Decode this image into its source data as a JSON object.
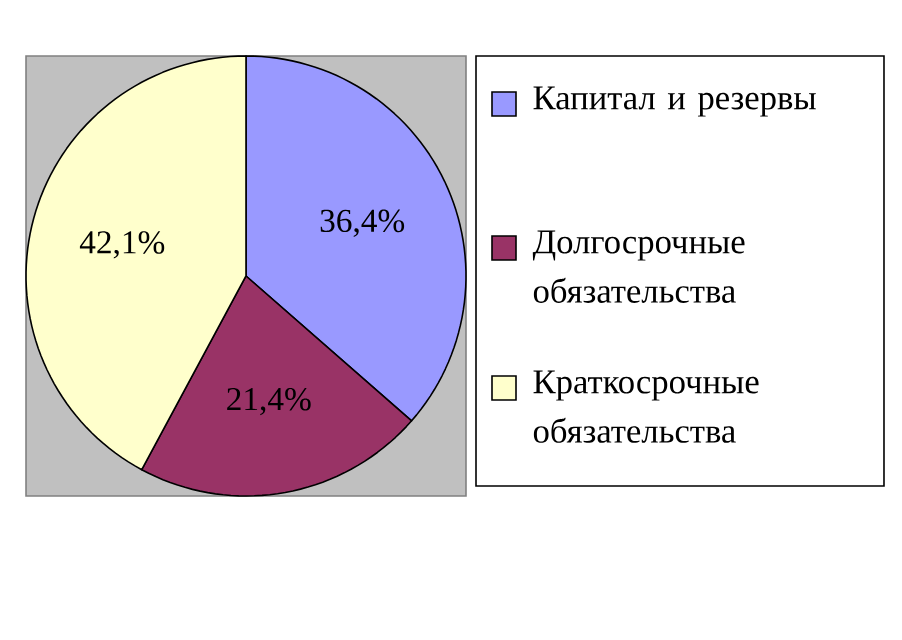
{
  "chart_data": {
    "type": "pie",
    "categories": [
      "Капитал и резервы",
      "Долгосрочные обязательства",
      "Краткосрочные обязательства"
    ],
    "values": [
      36.4,
      21.4,
      42.1
    ],
    "value_labels": [
      "36,4%",
      "21,4%",
      "42,1%"
    ],
    "colors": [
      "#9999ff",
      "#993366",
      "#ffffcc"
    ],
    "legend": "right"
  }
}
